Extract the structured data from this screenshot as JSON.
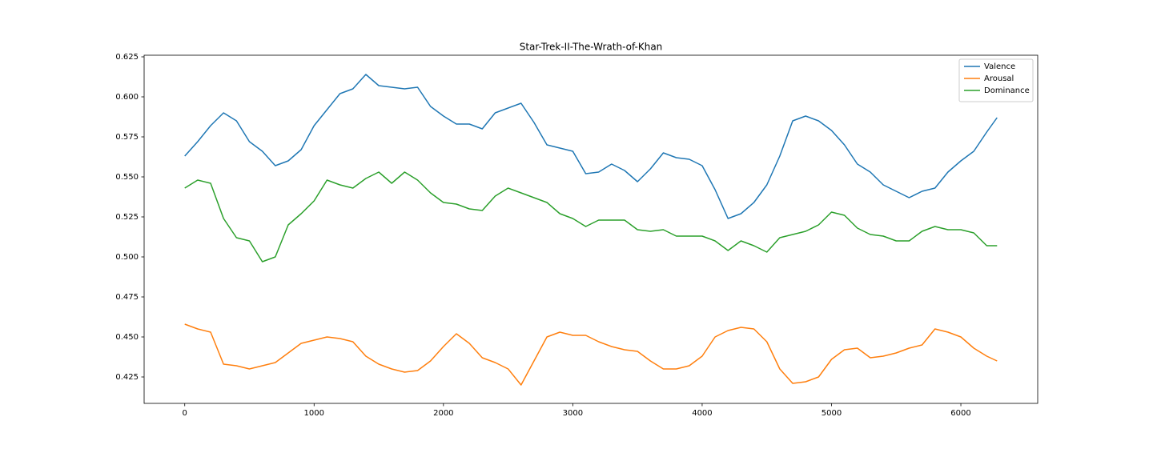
{
  "chart_data": {
    "type": "line",
    "title": "Star-Trek-II-The-Wrath-of-Khan",
    "x": [
      0,
      100,
      200,
      300,
      400,
      500,
      600,
      700,
      800,
      900,
      1000,
      1100,
      1200,
      1300,
      1400,
      1500,
      1600,
      1700,
      1800,
      1900,
      2000,
      2100,
      2200,
      2300,
      2400,
      2500,
      2600,
      2700,
      2800,
      2900,
      3000,
      3100,
      3200,
      3300,
      3400,
      3500,
      3600,
      3700,
      3800,
      3900,
      4000,
      4100,
      4200,
      4300,
      4400,
      4500,
      4600,
      4700,
      4800,
      4900,
      5000,
      5100,
      5200,
      5300,
      5400,
      5500,
      5600,
      5700,
      5800,
      5900,
      6000,
      6100,
      6200,
      6280
    ],
    "series": [
      {
        "name": "Valence",
        "color": "#1f77b4",
        "values": [
          0.563,
          0.572,
          0.582,
          0.59,
          0.585,
          0.572,
          0.566,
          0.557,
          0.56,
          0.567,
          0.582,
          0.592,
          0.602,
          0.605,
          0.614,
          0.607,
          0.606,
          0.605,
          0.606,
          0.594,
          0.588,
          0.583,
          0.583,
          0.58,
          0.59,
          0.593,
          0.596,
          0.584,
          0.57,
          0.568,
          0.566,
          0.552,
          0.553,
          0.558,
          0.554,
          0.547,
          0.555,
          0.565,
          0.562,
          0.561,
          0.557,
          0.542,
          0.524,
          0.527,
          0.534,
          0.545,
          0.563,
          0.585,
          0.588,
          0.585,
          0.579,
          0.57,
          0.558,
          0.553,
          0.545,
          0.541,
          0.537,
          0.541,
          0.543,
          0.553,
          0.56,
          0.566,
          0.578,
          0.587
        ]
      },
      {
        "name": "Arousal",
        "color": "#ff7f0e",
        "values": [
          0.458,
          0.455,
          0.453,
          0.433,
          0.432,
          0.43,
          0.432,
          0.434,
          0.44,
          0.446,
          0.448,
          0.45,
          0.449,
          0.447,
          0.438,
          0.433,
          0.43,
          0.428,
          0.429,
          0.435,
          0.444,
          0.452,
          0.446,
          0.437,
          0.434,
          0.43,
          0.42,
          0.435,
          0.45,
          0.453,
          0.451,
          0.451,
          0.447,
          0.444,
          0.442,
          0.441,
          0.435,
          0.43,
          0.43,
          0.432,
          0.438,
          0.45,
          0.454,
          0.456,
          0.455,
          0.447,
          0.43,
          0.421,
          0.422,
          0.425,
          0.436,
          0.442,
          0.443,
          0.437,
          0.438,
          0.44,
          0.443,
          0.445,
          0.455,
          0.453,
          0.45,
          0.443,
          0.438,
          0.435
        ]
      },
      {
        "name": "Dominance",
        "color": "#2ca02c",
        "values": [
          0.543,
          0.548,
          0.546,
          0.524,
          0.512,
          0.51,
          0.497,
          0.5,
          0.52,
          0.527,
          0.535,
          0.548,
          0.545,
          0.543,
          0.549,
          0.553,
          0.546,
          0.553,
          0.548,
          0.54,
          0.534,
          0.533,
          0.53,
          0.529,
          0.538,
          0.543,
          0.54,
          0.537,
          0.534,
          0.527,
          0.524,
          0.519,
          0.523,
          0.523,
          0.523,
          0.517,
          0.516,
          0.517,
          0.513,
          0.513,
          0.513,
          0.51,
          0.504,
          0.51,
          0.507,
          0.503,
          0.512,
          0.514,
          0.516,
          0.52,
          0.528,
          0.526,
          0.518,
          0.514,
          0.513,
          0.51,
          0.51,
          0.516,
          0.519,
          0.517,
          0.517,
          0.515,
          0.507,
          0.507
        ]
      }
    ],
    "xlim": [
      -314,
      6594
    ],
    "xticks": [
      0,
      1000,
      2000,
      3000,
      4000,
      5000,
      6000
    ],
    "ylim": [
      0.4085,
      0.626
    ],
    "yticks": [
      0.425,
      {
        "value": 0.45,
        "label": "0.450"
      },
      0.475,
      {
        "value": 0.5,
        "label": "0.500"
      },
      0.525,
      {
        "value": 0.55,
        "label": "0.550"
      },
      0.575,
      {
        "value": 0.6,
        "label": "0.600"
      },
      0.625
    ],
    "legend": "upper right"
  }
}
